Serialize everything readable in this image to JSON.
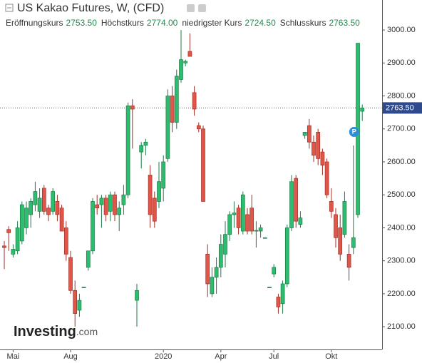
{
  "chart_data": {
    "type": "candlestick",
    "title": "US Kakao Futures, W, (CFD)",
    "legend_items": [
      {
        "name": "Eröffnungskurs",
        "value": {
          "value": 2753.5,
          "label": "2753.50"
        }
      },
      {
        "name": "Höchstkurs",
        "value": {
          "value": 2774,
          "label": "2774.00"
        }
      },
      {
        "name": "niedrigster Kurs",
        "value": {
          "value": 2724.5,
          "label": "2724.50"
        }
      },
      {
        "name": "Schlusskurs",
        "value": {
          "value": 2763.5,
          "label": "2763.50"
        }
      }
    ],
    "last_price": {
      "value": 2763.5,
      "label": "2763.50"
    },
    "marker": "P",
    "watermark": "Investing",
    "watermark_suffix": ".com",
    "up_color": "#2dbd6e",
    "down_color": "#e0574a",
    "categories": [
      null,
      null,
      "Mai",
      null,
      null,
      null,
      null,
      null,
      null,
      null,
      null,
      null,
      null,
      null,
      null,
      "Aug",
      null,
      null,
      null,
      null,
      null,
      null,
      null,
      null,
      null,
      null,
      null,
      null,
      null,
      null,
      null,
      null,
      null,
      null,
      null,
      null,
      "2020",
      null,
      null,
      null,
      null,
      null,
      null,
      null,
      null,
      null,
      null,
      null,
      null,
      "Apr",
      null,
      null,
      null,
      null,
      null,
      null,
      null,
      null,
      null,
      null,
      null,
      "Jul",
      null,
      null,
      null,
      null,
      null,
      null,
      null,
      null,
      null,
      null,
      null,
      null,
      "Okt",
      null,
      null,
      null,
      null,
      null,
      null,
      null
    ],
    "open": [
      2345,
      2395,
      2320,
      2330,
      2360,
      2400,
      2440,
      2470,
      2450,
      2520,
      2460,
      2450,
      2480,
      2460,
      2400,
      2310,
      2210,
      2150,
      2220,
      2280,
      2330,
      2470,
      2470,
      2490,
      2450,
      2500,
      2440,
      2470,
      2500,
      2770,
      2180,
      2630,
      2650,
      2560,
      2490,
      2480,
      2520,
      2610,
      2800,
      2720,
      2850,
      2900,
      2935,
      2810,
      2710,
      2700,
      2320,
      2200,
      2250,
      2280,
      2320,
      2380,
      2440,
      2460,
      2390,
      2440,
      2460,
      2390,
      2390,
      2370,
      2220,
      2260,
      2190,
      2170,
      2230,
      2400,
      2550,
      2410,
      2680,
      2710,
      2660,
      2690,
      2630,
      2600,
      2480,
      2440,
      2400,
      2380,
      2320,
      2340,
      2440,
      2753.5
    ],
    "high": [
      2360,
      2405,
      2350,
      2420,
      2480,
      2480,
      2490,
      2540,
      2520,
      2530,
      2470,
      2520,
      2500,
      2470,
      2420,
      2330,
      2240,
      2200,
      2220,
      2330,
      2490,
      2500,
      2500,
      2500,
      2510,
      2510,
      2480,
      2530,
      2780,
      2790,
      2230,
      2660,
      2670,
      2590,
      2510,
      2600,
      2620,
      2820,
      2830,
      2880,
      3000,
      2910,
      2990,
      2830,
      2720,
      2710,
      2350,
      2280,
      2310,
      2380,
      2420,
      2450,
      2480,
      2470,
      2510,
      2460,
      2500,
      2420,
      2410,
      2370,
      2220,
      2290,
      2200,
      2240,
      2410,
      2560,
      2560,
      2450,
      2690,
      2730,
      2680,
      2700,
      2640,
      2610,
      2520,
      2460,
      2440,
      2510,
      2350,
      2650,
      2960,
      2774
    ],
    "low": [
      2275,
      2330,
      2310,
      2320,
      2350,
      2380,
      2400,
      2450,
      2430,
      2440,
      2420,
      2440,
      2420,
      2390,
      2300,
      2200,
      2100,
      2130,
      2220,
      2270,
      2320,
      2440,
      2400,
      2420,
      2420,
      2420,
      2390,
      2440,
      2490,
      2640,
      2100,
      2580,
      2620,
      2400,
      2400,
      2460,
      2480,
      2600,
      2690,
      2700,
      2840,
      2890,
      2920,
      2740,
      2690,
      2480,
      2190,
      2190,
      2200,
      2250,
      2280,
      2360,
      2400,
      2380,
      2380,
      2380,
      2380,
      2340,
      2370,
      2370,
      2220,
      2250,
      2140,
      2140,
      2220,
      2390,
      2400,
      2400,
      2670,
      2640,
      2600,
      2590,
      2560,
      2490,
      2430,
      2340,
      2300,
      2370,
      2240,
      2320,
      2430,
      2724.5
    ],
    "close": [
      2340,
      2385,
      2335,
      2400,
      2470,
      2460,
      2480,
      2510,
      2490,
      2450,
      2440,
      2510,
      2440,
      2390,
      2320,
      2210,
      2140,
      2180,
      2220,
      2330,
      2480,
      2460,
      2490,
      2440,
      2500,
      2440,
      2460,
      2500,
      2770,
      2760,
      2210,
      2650,
      2660,
      2440,
      2420,
      2540,
      2600,
      2800,
      2720,
      2860,
      2910,
      2905,
      2920,
      2760,
      2700,
      2480,
      2230,
      2250,
      2280,
      2350,
      2380,
      2440,
      2445,
      2400,
      2500,
      2390,
      2390,
      2392,
      2400,
      2370,
      2220,
      2280,
      2160,
      2230,
      2400,
      2540,
      2420,
      2430,
      2690,
      2660,
      2620,
      2610,
      2590,
      2500,
      2450,
      2370,
      2320,
      2480,
      2280,
      2370,
      2960,
      2763.5
    ],
    "ylim": [
      2031,
      3091
    ],
    "yticks": [
      {
        "value": 2100,
        "label": "2100.00"
      },
      {
        "value": 2200,
        "label": "2200.00"
      },
      {
        "value": 2300,
        "label": "2300.00"
      },
      {
        "value": 2400,
        "label": "2400.00"
      },
      {
        "value": 2500,
        "label": "2500.00"
      },
      {
        "value": 2600,
        "label": "2600.00"
      },
      {
        "value": 2700,
        "label": "2700.00"
      },
      {
        "value": 2800,
        "label": "2800.00"
      },
      {
        "value": 2900,
        "label": "2900.00"
      },
      {
        "value": 3000,
        "label": "3000.00"
      }
    ]
  }
}
